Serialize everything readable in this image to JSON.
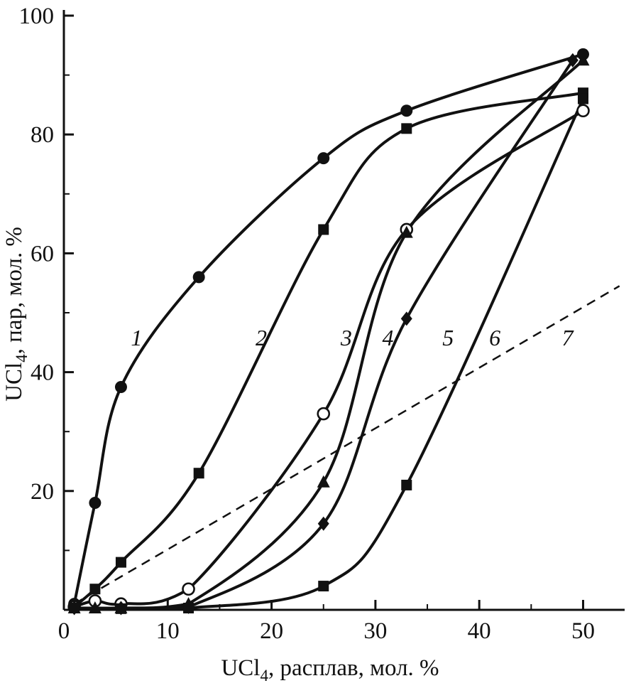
{
  "figure": {
    "background": "#ffffff",
    "ink_color": "#111111"
  },
  "chart_data": {
    "type": "line",
    "title": "",
    "xlabel": {
      "pre": "UCl",
      "sub": "4",
      "post": ", расплав, мол. %"
    },
    "ylabel": {
      "pre": "UCl",
      "sub": "4",
      "post": ", пар, мол. %"
    },
    "xlim": [
      0,
      54
    ],
    "ylim": [
      0,
      100
    ],
    "x_ticks_major": [
      0,
      10,
      20,
      30,
      40,
      50
    ],
    "x_ticks_minor": [
      5,
      15,
      25,
      35,
      45
    ],
    "x_tick_labels": [
      "0",
      "10",
      "20",
      "30",
      "40",
      "50"
    ],
    "y_ticks_major": [
      20,
      40,
      60,
      80,
      100
    ],
    "y_ticks_minor": [
      10,
      30,
      50,
      70,
      90
    ],
    "y_tick_labels": [
      "20",
      "40",
      "60",
      "80",
      "100"
    ],
    "grid": false,
    "legend": "inline curve labels 1-7",
    "series": [
      {
        "label": "1",
        "marker": "circle-filled",
        "style": "solid",
        "points": [
          [
            1,
            1
          ],
          [
            3,
            18
          ],
          [
            5.5,
            37.5
          ],
          [
            13,
            56
          ],
          [
            25,
            76
          ],
          [
            33,
            84
          ],
          [
            50,
            93.5
          ]
        ]
      },
      {
        "label": "2",
        "marker": "square-filled",
        "style": "solid",
        "points": [
          [
            1,
            0.5
          ],
          [
            3,
            3.5
          ],
          [
            5.5,
            8
          ],
          [
            13,
            23
          ],
          [
            25,
            64
          ],
          [
            33,
            81
          ],
          [
            50,
            87
          ]
        ]
      },
      {
        "label": "3",
        "marker": "circle-open",
        "style": "solid",
        "points": [
          [
            1,
            0.5
          ],
          [
            3,
            1.5
          ],
          [
            5.5,
            1
          ],
          [
            12,
            3.5
          ],
          [
            25,
            33
          ],
          [
            33,
            64
          ],
          [
            50,
            84
          ]
        ]
      },
      {
        "label": "4",
        "marker": "triangle-filled",
        "style": "solid",
        "points": [
          [
            1,
            0.3
          ],
          [
            3,
            0.3
          ],
          [
            5.5,
            0.3
          ],
          [
            12,
            1
          ],
          [
            25,
            21.5
          ],
          [
            33,
            63.5
          ],
          [
            50,
            92.5
          ]
        ]
      },
      {
        "label": "5",
        "marker": "diamond-filled",
        "style": "solid",
        "points": [
          [
            1,
            0.3
          ],
          [
            5.5,
            0.3
          ],
          [
            12,
            0.5
          ],
          [
            25,
            14.5
          ],
          [
            33,
            49
          ],
          [
            49,
            92.5
          ]
        ]
      },
      {
        "label": "6",
        "marker": "square-filled",
        "style": "solid",
        "points": [
          [
            1,
            0.3
          ],
          [
            5.5,
            0.2
          ],
          [
            12,
            0.3
          ],
          [
            25,
            4
          ],
          [
            33,
            21
          ],
          [
            50,
            86
          ]
        ]
      },
      {
        "label": "7",
        "marker": "none",
        "style": "dashed",
        "points": [
          [
            1,
            1
          ],
          [
            53.5,
            54.5
          ]
        ]
      }
    ],
    "curve_labels": [
      {
        "text": "1",
        "x": 7,
        "y": 44.5
      },
      {
        "text": "2",
        "x": 19,
        "y": 44.5
      },
      {
        "text": "3",
        "x": 27.2,
        "y": 44.5
      },
      {
        "text": "4",
        "x": 31.2,
        "y": 44.5
      },
      {
        "text": "5",
        "x": 37,
        "y": 44.5
      },
      {
        "text": "6",
        "x": 41.5,
        "y": 44.5
      },
      {
        "text": "7",
        "x": 48.5,
        "y": 44.5
      }
    ]
  }
}
